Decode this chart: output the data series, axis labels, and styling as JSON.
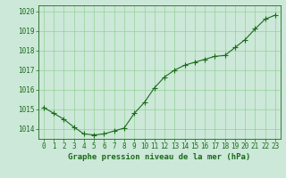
{
  "x": [
    0,
    1,
    2,
    3,
    4,
    5,
    6,
    7,
    8,
    9,
    10,
    11,
    12,
    13,
    14,
    15,
    16,
    17,
    18,
    19,
    20,
    21,
    22,
    23
  ],
  "y": [
    1015.1,
    1014.8,
    1014.5,
    1014.1,
    1013.75,
    1013.7,
    1013.75,
    1013.9,
    1014.05,
    1014.8,
    1015.35,
    1016.1,
    1016.65,
    1017.0,
    1017.25,
    1017.4,
    1017.55,
    1017.7,
    1017.75,
    1018.15,
    1018.55,
    1019.1,
    1019.6,
    1019.8
  ],
  "line_color": "#1a6b1a",
  "marker_color": "#1a6b1a",
  "bg_color": "#cce8d8",
  "grid_color": "#88cc88",
  "axis_color": "#1a6b1a",
  "title": "Graphe pression niveau de la mer (hPa)",
  "title_color": "#1a6b1a",
  "xlim": [
    -0.5,
    23.5
  ],
  "ylim": [
    1013.5,
    1020.3
  ],
  "yticks": [
    1014,
    1015,
    1016,
    1017,
    1018,
    1019,
    1020
  ],
  "xticks": [
    0,
    1,
    2,
    3,
    4,
    5,
    6,
    7,
    8,
    9,
    10,
    11,
    12,
    13,
    14,
    15,
    16,
    17,
    18,
    19,
    20,
    21,
    22,
    23
  ],
  "tick_fontsize": 5.5,
  "title_fontsize": 6.5,
  "marker_size": 2.0,
  "line_width": 0.8
}
